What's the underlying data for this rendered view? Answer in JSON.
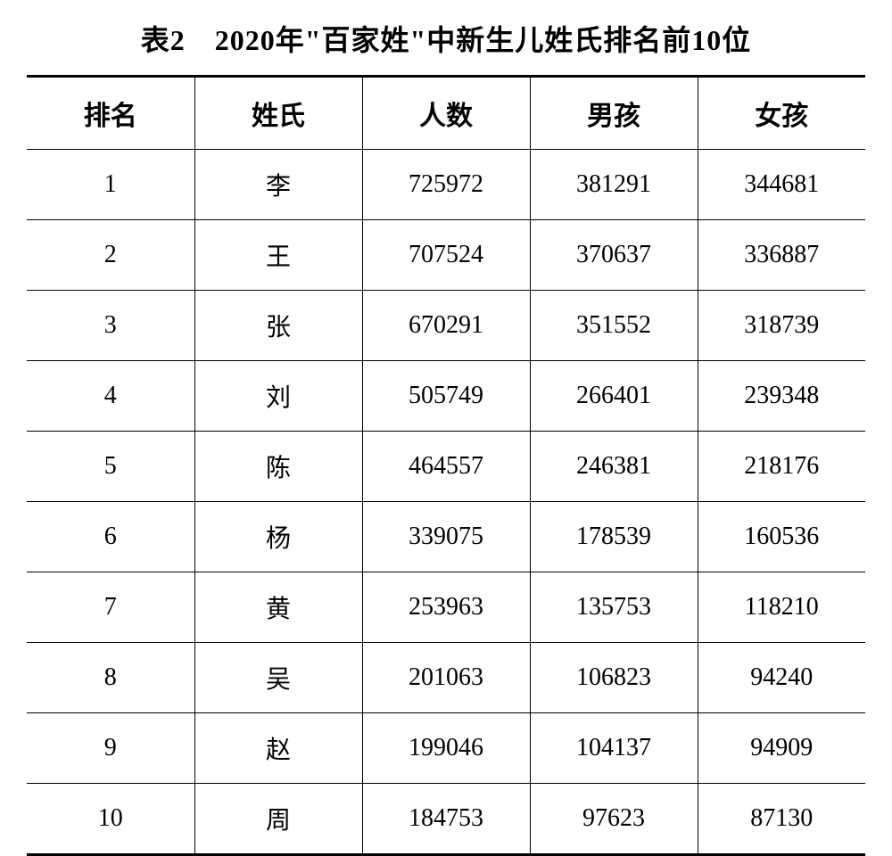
{
  "title": "表2　2020年\"百家姓\"中新生儿姓氏排名前10位",
  "columns": [
    "排名",
    "姓氏",
    "人数",
    "男孩",
    "女孩"
  ],
  "rows": [
    [
      "1",
      "李",
      "725972",
      "381291",
      "344681"
    ],
    [
      "2",
      "王",
      "707524",
      "370637",
      "336887"
    ],
    [
      "3",
      "张",
      "670291",
      "351552",
      "318739"
    ],
    [
      "4",
      "刘",
      "505749",
      "266401",
      "239348"
    ],
    [
      "5",
      "陈",
      "464557",
      "246381",
      "218176"
    ],
    [
      "6",
      "杨",
      "339075",
      "178539",
      "160536"
    ],
    [
      "7",
      "黄",
      "253963",
      "135753",
      "118210"
    ],
    [
      "8",
      "吴",
      "201063",
      "106823",
      "94240"
    ],
    [
      "9",
      "赵",
      "199046",
      "104137",
      "94909"
    ],
    [
      "10",
      "周",
      "184753",
      "97623",
      "87130"
    ]
  ],
  "styling": {
    "title_fontsize": 32,
    "header_fontsize": 30,
    "cell_fontsize": 28,
    "text_color": "#000000",
    "background_color": "#ffffff",
    "border_color": "#000000",
    "outer_border_width": 3,
    "inner_border_width": 1.5,
    "column_count": 5,
    "row_count": 10,
    "font_family_cjk": "SimSun",
    "font_family_numeric": "Times New Roman"
  }
}
